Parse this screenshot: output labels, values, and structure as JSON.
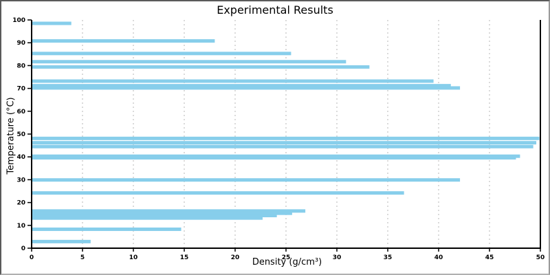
{
  "chart_data": {
    "type": "bar",
    "orientation": "horizontal",
    "title": "Experimental Results",
    "xlabel": "Density (g/cm³)",
    "ylabel": "Temperature (°C)",
    "xlim": [
      0,
      50
    ],
    "ylim": [
      0,
      100
    ],
    "xticks": [
      0,
      5,
      10,
      15,
      20,
      25,
      30,
      35,
      40,
      45,
      50
    ],
    "yticks": [
      0,
      10,
      20,
      30,
      40,
      50,
      60,
      70,
      80,
      90,
      100
    ],
    "grid": "vertical-dashed-only",
    "legend": "none",
    "bar_color": "#87CEEB",
    "grid_color": "#b4b4b4",
    "axis_color": "#000000",
    "bar_thickness_units": 1.5,
    "points": [
      {
        "temperature": 98.5,
        "density": 3.9
      },
      {
        "temperature": 90.8,
        "density": 18.0
      },
      {
        "temperature": 85.3,
        "density": 25.5
      },
      {
        "temperature": 81.7,
        "density": 30.9
      },
      {
        "temperature": 79.4,
        "density": 33.2
      },
      {
        "temperature": 73.2,
        "density": 39.5
      },
      {
        "temperature": 71.2,
        "density": 41.2
      },
      {
        "temperature": 70.2,
        "density": 42.1
      },
      {
        "temperature": 48.1,
        "density": 49.9
      },
      {
        "temperature": 46.2,
        "density": 49.6
      },
      {
        "temperature": 44.5,
        "density": 49.3
      },
      {
        "temperature": 40.3,
        "density": 48.0
      },
      {
        "temperature": 39.6,
        "density": 47.6
      },
      {
        "temperature": 29.9,
        "density": 42.1
      },
      {
        "temperature": 24.2,
        "density": 36.6
      },
      {
        "temperature": 16.3,
        "density": 26.9
      },
      {
        "temperature": 15.3,
        "density": 25.6
      },
      {
        "temperature": 14.3,
        "density": 24.1
      },
      {
        "temperature": 13.2,
        "density": 22.7
      },
      {
        "temperature": 8.3,
        "density": 14.7
      },
      {
        "temperature": 2.9,
        "density": 5.8
      }
    ]
  }
}
